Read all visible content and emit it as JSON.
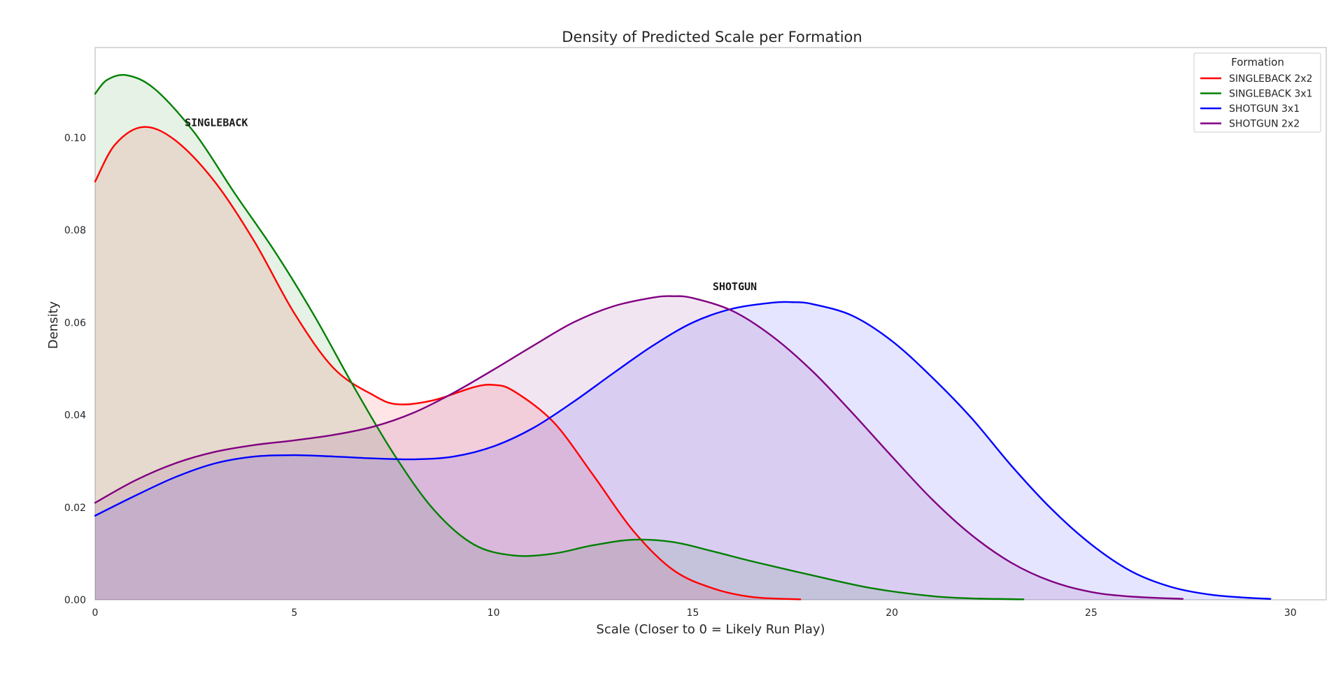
{
  "chart_data": {
    "type": "area",
    "title": "Density of Predicted Scale per Formation",
    "xlabel": "Scale (Closer to 0 = Likely Run Play)",
    "ylabel": "Density",
    "xlim": [
      0,
      30.9
    ],
    "ylim": [
      0,
      0.1195
    ],
    "x_ticks": [
      0,
      5,
      10,
      15,
      20,
      25,
      30
    ],
    "y_ticks": [
      0.0,
      0.02,
      0.04,
      0.06,
      0.08,
      0.1
    ],
    "y_tick_labels": [
      "0.00",
      "0.02",
      "0.04",
      "0.06",
      "0.08",
      "0.10"
    ],
    "grid": false,
    "legend": {
      "title": "Formation",
      "position": "top-right"
    },
    "series": [
      {
        "name": "SINGLEBACK 2x2",
        "color": "#ff0000",
        "fill_opacity": 0.1,
        "points": [
          [
            0,
            0.0905
          ],
          [
            0.5,
            0.0985
          ],
          [
            1.2,
            0.1023
          ],
          [
            2,
            0.0995
          ],
          [
            3,
            0.0905
          ],
          [
            4,
            0.0775
          ],
          [
            5,
            0.062
          ],
          [
            6,
            0.05
          ],
          [
            7,
            0.0442
          ],
          [
            7.6,
            0.0423
          ],
          [
            8.5,
            0.0432
          ],
          [
            9.5,
            0.046
          ],
          [
            10,
            0.0465
          ],
          [
            10.5,
            0.0452
          ],
          [
            11.5,
            0.0385
          ],
          [
            12.5,
            0.027
          ],
          [
            13.5,
            0.015
          ],
          [
            14.5,
            0.0065
          ],
          [
            15.5,
            0.0025
          ],
          [
            16.5,
            0.0006
          ],
          [
            17.7,
            0.0001
          ]
        ]
      },
      {
        "name": "SINGLEBACK 3x1",
        "color": "#008000",
        "fill_opacity": 0.1,
        "points": [
          [
            0,
            0.1095
          ],
          [
            0.3,
            0.1125
          ],
          [
            0.8,
            0.1135
          ],
          [
            1.5,
            0.1105
          ],
          [
            2.5,
            0.101
          ],
          [
            3.5,
            0.088
          ],
          [
            4.5,
            0.0755
          ],
          [
            5.5,
            0.0615
          ],
          [
            6.5,
            0.046
          ],
          [
            7.5,
            0.0315
          ],
          [
            8.5,
            0.0195
          ],
          [
            9.5,
            0.012
          ],
          [
            10.5,
            0.0096
          ],
          [
            11.5,
            0.01
          ],
          [
            12.5,
            0.0118
          ],
          [
            13.5,
            0.013
          ],
          [
            14.5,
            0.0125
          ],
          [
            15.5,
            0.0105
          ],
          [
            16.5,
            0.0083
          ],
          [
            18,
            0.0053
          ],
          [
            19.5,
            0.0025
          ],
          [
            21,
            0.0008
          ],
          [
            22,
            0.0003
          ],
          [
            23.3,
            0.0001
          ]
        ]
      },
      {
        "name": "SHOTGUN 3x1",
        "color": "#0000ff",
        "fill_opacity": 0.1,
        "points": [
          [
            0,
            0.0182
          ],
          [
            1,
            0.0225
          ],
          [
            2,
            0.0265
          ],
          [
            3,
            0.0295
          ],
          [
            4,
            0.031
          ],
          [
            5,
            0.0313
          ],
          [
            6,
            0.031
          ],
          [
            7,
            0.0306
          ],
          [
            8,
            0.0304
          ],
          [
            9,
            0.031
          ],
          [
            10,
            0.0332
          ],
          [
            11,
            0.0372
          ],
          [
            12,
            0.0428
          ],
          [
            13,
            0.049
          ],
          [
            14,
            0.055
          ],
          [
            15,
            0.06
          ],
          [
            16,
            0.063
          ],
          [
            17,
            0.0643
          ],
          [
            17.5,
            0.0644
          ],
          [
            18,
            0.064
          ],
          [
            19,
            0.0615
          ],
          [
            20,
            0.056
          ],
          [
            21,
            0.0482
          ],
          [
            22,
            0.0393
          ],
          [
            23,
            0.029
          ],
          [
            24,
            0.0197
          ],
          [
            25,
            0.012
          ],
          [
            26,
            0.0062
          ],
          [
            27,
            0.0028
          ],
          [
            28,
            0.0011
          ],
          [
            29,
            0.0004
          ],
          [
            29.5,
            0.0002
          ]
        ]
      },
      {
        "name": "SHOTGUN 2x2",
        "color": "#800080",
        "fill_opacity": 0.1,
        "points": [
          [
            0,
            0.021
          ],
          [
            1,
            0.0258
          ],
          [
            2,
            0.0295
          ],
          [
            3,
            0.032
          ],
          [
            4,
            0.0335
          ],
          [
            5,
            0.0345
          ],
          [
            6,
            0.0357
          ],
          [
            7,
            0.0375
          ],
          [
            8,
            0.0405
          ],
          [
            9,
            0.0448
          ],
          [
            10,
            0.0498
          ],
          [
            11,
            0.055
          ],
          [
            12,
            0.06
          ],
          [
            13,
            0.0635
          ],
          [
            14,
            0.0654
          ],
          [
            14.5,
            0.0657
          ],
          [
            15,
            0.0653
          ],
          [
            16,
            0.0625
          ],
          [
            17,
            0.057
          ],
          [
            18,
            0.0495
          ],
          [
            19,
            0.0405
          ],
          [
            20,
            0.031
          ],
          [
            21,
            0.0218
          ],
          [
            22,
            0.014
          ],
          [
            23,
            0.008
          ],
          [
            24,
            0.004
          ],
          [
            25,
            0.0017
          ],
          [
            26,
            0.0007
          ],
          [
            27.3,
            0.0002
          ]
        ]
      }
    ],
    "annotations": [
      {
        "text": "SINGLEBACK",
        "x": 2.25,
        "y": 0.1025
      },
      {
        "text": "SHOTGUN",
        "x": 15.5,
        "y": 0.067
      }
    ]
  }
}
